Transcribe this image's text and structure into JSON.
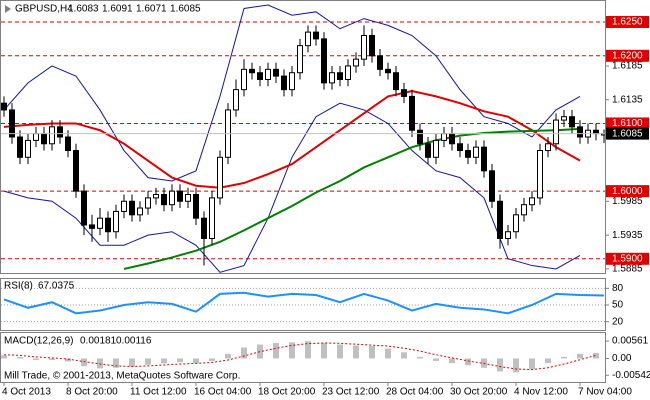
{
  "chart_data": [
    {
      "type": "candlestick",
      "symbol": "GBPUSD,H4",
      "categories": [
        "4 Oct 2013",
        null,
        null,
        null,
        null,
        null,
        null,
        null,
        "8 Oct 20:00",
        null,
        null,
        null,
        null,
        null,
        null,
        null,
        "11 Oct 12:00",
        null,
        null,
        null,
        null,
        null,
        null,
        null,
        "16 Oct 04:00",
        null,
        null,
        null,
        null,
        null,
        null,
        null,
        "18 Oct 20:00",
        null,
        null,
        null,
        null,
        null,
        null,
        null,
        "23 Oct 12:00",
        null,
        null,
        null,
        null,
        null,
        null,
        null,
        "28 Oct 04:00",
        null,
        null,
        null,
        null,
        null,
        null,
        null,
        "30 Oct 20:00",
        null,
        null,
        null,
        null,
        null,
        null,
        null,
        "4 Nov 12:00",
        null,
        null,
        null,
        null,
        null,
        null,
        null,
        "7 Nov 04:00",
        null,
        null,
        null
      ],
      "open": [
        1.613,
        1.612,
        1.608,
        1.605,
        1.6075,
        1.6085,
        1.607,
        1.6095,
        1.608,
        1.606,
        1.6,
        1.595,
        1.5945,
        1.596,
        1.594,
        1.597,
        1.5985,
        1.5965,
        1.5975,
        1.599,
        1.5995,
        1.598,
        1.6,
        1.5985,
        1.5995,
        1.596,
        1.593,
        1.599,
        1.605,
        1.612,
        1.615,
        1.618,
        1.6175,
        1.6165,
        1.618,
        1.617,
        1.615,
        1.6175,
        1.6215,
        1.6235,
        1.6225,
        1.616,
        1.6175,
        1.6165,
        1.6185,
        1.6195,
        1.623,
        1.62,
        1.618,
        1.6175,
        1.615,
        1.614,
        1.609,
        1.607,
        1.605,
        1.6075,
        1.6085,
        1.607,
        1.606,
        1.605,
        1.6065,
        1.603,
        1.5985,
        1.593,
        1.594,
        1.5965,
        1.598,
        1.599,
        1.606,
        1.607,
        1.6105,
        1.611,
        1.6095,
        1.608,
        1.609,
        1.6083
      ],
      "high": [
        1.614,
        1.613,
        1.609,
        1.6085,
        1.6095,
        1.6095,
        1.6105,
        1.6105,
        1.609,
        1.607,
        1.601,
        1.5965,
        1.5975,
        1.597,
        1.598,
        1.5995,
        1.5995,
        1.5985,
        1.6,
        1.6005,
        1.6005,
        1.601,
        1.601,
        1.6005,
        1.6005,
        1.597,
        1.6,
        1.606,
        1.613,
        1.6165,
        1.6195,
        1.619,
        1.6185,
        1.619,
        1.619,
        1.618,
        1.6185,
        1.6225,
        1.6245,
        1.6245,
        1.6235,
        1.6185,
        1.6185,
        1.6195,
        1.6205,
        1.6245,
        1.624,
        1.621,
        1.619,
        1.6185,
        1.616,
        1.615,
        1.61,
        1.608,
        1.6085,
        1.6095,
        1.6095,
        1.608,
        1.607,
        1.6075,
        1.6075,
        1.604,
        1.5995,
        1.595,
        1.5975,
        1.599,
        1.6,
        1.607,
        1.608,
        1.6115,
        1.612,
        1.612,
        1.6105,
        1.61,
        1.61,
        1.6091
      ],
      "low": [
        1.611,
        1.607,
        1.604,
        1.604,
        1.6065,
        1.606,
        1.606,
        1.607,
        1.605,
        1.599,
        1.5935,
        1.5925,
        1.5935,
        1.5925,
        1.593,
        1.596,
        1.5955,
        1.5955,
        1.5965,
        1.598,
        1.597,
        1.597,
        1.5975,
        1.5975,
        1.595,
        1.589,
        1.592,
        1.598,
        1.604,
        1.611,
        1.614,
        1.6165,
        1.6155,
        1.6155,
        1.616,
        1.614,
        1.614,
        1.6165,
        1.6205,
        1.6215,
        1.615,
        1.615,
        1.6155,
        1.6155,
        1.6175,
        1.6185,
        1.619,
        1.617,
        1.6165,
        1.614,
        1.613,
        1.608,
        1.606,
        1.604,
        1.604,
        1.6065,
        1.606,
        1.605,
        1.604,
        1.604,
        1.602,
        1.5975,
        1.5915,
        1.592,
        1.593,
        1.5955,
        1.597,
        1.598,
        1.605,
        1.606,
        1.6095,
        1.6085,
        1.607,
        1.607,
        1.6075,
        1.6071
      ],
      "close": [
        1.612,
        1.608,
        1.605,
        1.6075,
        1.6085,
        1.607,
        1.6095,
        1.608,
        1.606,
        1.6,
        1.595,
        1.5945,
        1.596,
        1.594,
        1.597,
        1.5985,
        1.5965,
        1.5975,
        1.599,
        1.5995,
        1.598,
        1.6,
        1.5985,
        1.5995,
        1.596,
        1.593,
        1.599,
        1.605,
        1.612,
        1.615,
        1.618,
        1.6175,
        1.6165,
        1.618,
        1.617,
        1.615,
        1.6175,
        1.6215,
        1.6235,
        1.6225,
        1.616,
        1.6175,
        1.6165,
        1.6185,
        1.6195,
        1.623,
        1.62,
        1.618,
        1.6175,
        1.615,
        1.614,
        1.609,
        1.607,
        1.605,
        1.6075,
        1.6085,
        1.607,
        1.606,
        1.605,
        1.6065,
        1.603,
        1.5985,
        1.593,
        1.594,
        1.5965,
        1.598,
        1.599,
        1.606,
        1.607,
        1.6105,
        1.611,
        1.6095,
        1.608,
        1.609,
        1.6085,
        1.6085
      ],
      "overlays": [
        {
          "color": "#1414a0",
          "width": 1,
          "x": [
            0,
            3,
            6,
            9,
            12,
            15,
            18,
            21,
            24,
            27,
            30,
            33,
            36,
            39,
            42,
            45,
            48,
            51,
            54,
            57,
            60,
            63,
            66,
            69,
            72
          ],
          "values": [
            1.612,
            1.616,
            1.6185,
            1.617,
            1.612,
            1.606,
            1.602,
            1.6015,
            1.603,
            1.614,
            1.627,
            1.6275,
            1.626,
            1.6265,
            1.624,
            1.6255,
            1.6245,
            1.623,
            1.62,
            1.615,
            1.611,
            1.61,
            1.608,
            1.612,
            1.614
          ]
        },
        {
          "color": "#1414a0",
          "width": 1,
          "x": [
            0,
            3,
            6,
            9,
            12,
            15,
            18,
            21,
            24,
            27,
            30,
            33,
            36,
            39,
            42,
            45,
            48,
            51,
            54,
            57,
            60,
            63,
            66,
            69,
            72
          ],
          "values": [
            1.6,
            1.599,
            1.5985,
            1.596,
            1.592,
            1.592,
            1.5935,
            1.594,
            1.592,
            1.588,
            1.589,
            1.596,
            1.605,
            1.611,
            1.613,
            1.612,
            1.61,
            1.606,
            1.603,
            1.602,
            1.599,
            1.59,
            1.589,
            1.5885,
            1.5905
          ]
        },
        {
          "color": "#e00000",
          "width": 2,
          "x": [
            0,
            3,
            6,
            9,
            12,
            15,
            18,
            21,
            24,
            27,
            30,
            33,
            36,
            39,
            42,
            45,
            48,
            51,
            54,
            57,
            60,
            63,
            66,
            69,
            72
          ],
          "values": [
            1.6095,
            1.6098,
            1.61,
            1.61,
            1.609,
            1.607,
            1.6045,
            1.602,
            1.6008,
            1.6005,
            1.6012,
            1.6025,
            1.604,
            1.6065,
            1.609,
            1.6115,
            1.614,
            1.6148,
            1.614,
            1.613,
            1.6118,
            1.611,
            1.609,
            1.6065,
            1.6045
          ]
        },
        {
          "color": "#008000",
          "width": 2,
          "x": [
            15,
            18,
            21,
            24,
            27,
            30,
            33,
            36,
            39,
            42,
            45,
            48,
            51,
            54,
            57,
            60,
            63,
            66,
            69,
            72
          ],
          "values": [
            1.5885,
            1.5893,
            1.5902,
            1.5912,
            1.5925,
            1.5942,
            1.596,
            1.5978,
            1.5998,
            1.6015,
            1.6035,
            1.605,
            1.6065,
            1.6075,
            1.6082,
            1.6086,
            1.6088,
            1.6089,
            1.609,
            1.6092
          ]
        }
      ],
      "ylim": [
        1.5879,
        1.6281
      ],
      "yticks": [
        {
          "value": 1.6185,
          "label": "1.6185"
        },
        {
          "value": 1.6135,
          "label": "1.6135"
        },
        {
          "value": 1.5985,
          "label": "1.5985"
        },
        {
          "value": 1.5935,
          "label": "1.5935"
        },
        {
          "value": 1.5885,
          "label": "1.5885"
        }
      ],
      "levels": [
        {
          "value": 1.625,
          "label": "1.6250"
        },
        {
          "value": 1.62,
          "label": "1.6200"
        },
        {
          "value": 1.61,
          "label": "1.6100"
        },
        {
          "value": 1.6,
          "label": "1.6000"
        },
        {
          "value": 1.59,
          "label": "1.5900"
        }
      ],
      "level_color": "#e00000"
    },
    {
      "type": "line",
      "name": "RSI(8)",
      "current": 67.0375,
      "color": "#1e90ff",
      "x": [
        0,
        3,
        6,
        9,
        12,
        15,
        18,
        21,
        24,
        27,
        30,
        33,
        36,
        39,
        42,
        45,
        48,
        51,
        54,
        57,
        60,
        63,
        66,
        69,
        72,
        75
      ],
      "values": [
        60,
        45,
        55,
        35,
        40,
        50,
        55,
        52,
        38,
        70,
        72,
        65,
        70,
        68,
        55,
        70,
        58,
        40,
        52,
        45,
        42,
        35,
        50,
        70,
        68,
        67
      ],
      "ylim": [
        5,
        95
      ],
      "yticks": [
        80,
        50,
        20
      ],
      "grid": true
    },
    {
      "type": "bar",
      "name": "MACD(12,26,9)",
      "current": [
        0.00181,
        0.00116
      ],
      "color": "#c0c0c0",
      "footer": "Mill Trade, © 2001-2013, MetaQuotes Software Corp.",
      "x": [
        0,
        2,
        4,
        6,
        8,
        10,
        12,
        14,
        16,
        18,
        20,
        22,
        24,
        26,
        28,
        30,
        32,
        34,
        36,
        38,
        40,
        42,
        44,
        46,
        48,
        50,
        52,
        54,
        56,
        58,
        60,
        62,
        64,
        66,
        68,
        70,
        72,
        74
      ],
      "values": [
        0.001,
        0.0005,
        -0.0005,
        -0.0005,
        -0.001,
        -0.0025,
        -0.0032,
        -0.003,
        -0.0026,
        -0.002,
        -0.0016,
        -0.0012,
        -0.0015,
        -0.0008,
        0.0015,
        0.0035,
        0.0045,
        0.005,
        0.0052,
        0.0056,
        0.005,
        0.0045,
        0.0042,
        0.004,
        0.0032,
        0.002,
        0.0005,
        -0.0008,
        -0.0015,
        -0.0022,
        -0.003,
        -0.0042,
        -0.0045,
        -0.0035,
        -0.0015,
        0.0005,
        0.0015,
        0.0018
      ],
      "signal": {
        "color": "#e00000",
        "values": [
          0.0012,
          0.001,
          0.0005,
          0.0002,
          -0.0002,
          -0.001,
          -0.0018,
          -0.0024,
          -0.0026,
          -0.0024,
          -0.0021,
          -0.0018,
          -0.0016,
          -0.0013,
          -0.0005,
          0.0008,
          0.0022,
          0.0033,
          0.0042,
          0.0048,
          0.005,
          0.0049,
          0.0046,
          0.0043,
          0.004,
          0.0033,
          0.0024,
          0.0012,
          0.0002,
          -0.0008,
          -0.0016,
          -0.0026,
          -0.0034,
          -0.0036,
          -0.003,
          -0.0018,
          -0.0004,
          0.001
        ]
      },
      "ylim": [
        -0.0076,
        0.0079
      ],
      "yticks": [
        0.00561,
        {
          "value": 0,
          "label": "0.00"
        },
        -0.00542
      ]
    }
  ]
}
